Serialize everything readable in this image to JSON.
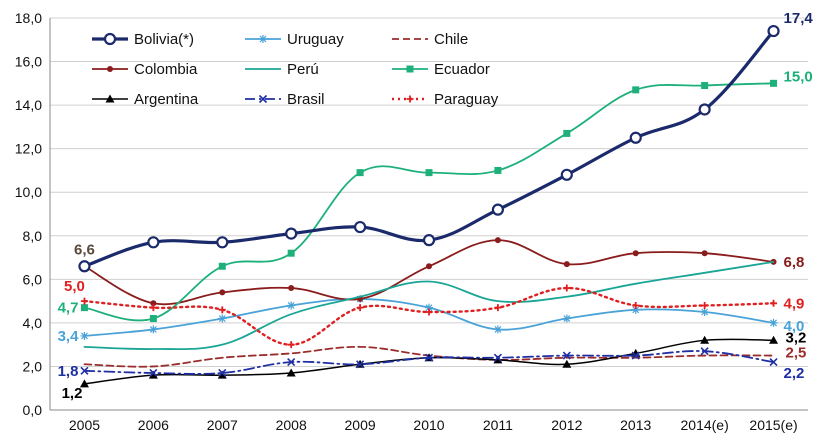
{
  "chart_data": {
    "type": "line",
    "categories": [
      "2005",
      "2006",
      "2007",
      "2008",
      "2009",
      "2010",
      "2011",
      "2012",
      "2013",
      "2014(e)",
      "2015(e)"
    ],
    "ylim": [
      0,
      18
    ],
    "yticks": [
      "0,0",
      "2,0",
      "4,0",
      "6,0",
      "8,0",
      "10,0",
      "12,0",
      "14,0",
      "16,0",
      "18,0"
    ],
    "grid": true,
    "legend_position": "top-left",
    "series": [
      {
        "name": "Bolivia(*)",
        "color": "#1b2a6b",
        "dash": "solid",
        "marker": "circle",
        "width": 3.2,
        "values": [
          6.6,
          7.7,
          7.7,
          8.1,
          8.4,
          7.8,
          9.2,
          10.8,
          12.5,
          13.8,
          17.4
        ]
      },
      {
        "name": "Uruguay",
        "color": "#4aa3d8",
        "dash": "solid",
        "marker": "star",
        "width": 1.8,
        "values": [
          3.4,
          3.7,
          4.2,
          4.8,
          5.1,
          4.7,
          3.7,
          4.2,
          4.6,
          4.5,
          4.0
        ]
      },
      {
        "name": "Chile",
        "color": "#9b2c2c",
        "dash": "dash",
        "marker": "none",
        "width": 1.8,
        "values": [
          2.1,
          2.0,
          2.4,
          2.6,
          2.9,
          2.5,
          2.3,
          2.4,
          2.4,
          2.5,
          2.5
        ]
      },
      {
        "name": "Colombia",
        "color": "#8a1c1c",
        "dash": "solid",
        "marker": "dot",
        "width": 1.8,
        "values": [
          6.6,
          4.9,
          5.4,
          5.6,
          5.1,
          6.6,
          7.8,
          6.7,
          7.2,
          7.2,
          6.8
        ]
      },
      {
        "name": "Perú",
        "color": "#1aa596",
        "dash": "solid",
        "marker": "none",
        "width": 1.8,
        "values": [
          2.9,
          2.8,
          3.0,
          4.4,
          5.2,
          5.9,
          5.0,
          5.2,
          5.8,
          6.3,
          6.8
        ]
      },
      {
        "name": "Ecuador",
        "color": "#1db07a",
        "dash": "solid",
        "marker": "square",
        "width": 1.8,
        "values": [
          4.7,
          4.2,
          6.6,
          7.2,
          10.9,
          10.9,
          11.0,
          12.7,
          14.7,
          14.9,
          15.0
        ]
      },
      {
        "name": "Argentina",
        "color": "#000000",
        "dash": "solid",
        "marker": "triangle",
        "width": 1.5,
        "values": [
          1.2,
          1.6,
          1.6,
          1.7,
          2.1,
          2.4,
          2.3,
          2.1,
          2.6,
          3.2,
          3.2
        ]
      },
      {
        "name": "Brasil",
        "color": "#1f2fa3",
        "dash": "dashdot",
        "marker": "x",
        "width": 1.8,
        "values": [
          1.8,
          1.7,
          1.7,
          2.2,
          2.1,
          2.4,
          2.4,
          2.5,
          2.5,
          2.7,
          2.2
        ]
      },
      {
        "name": "Paraguay",
        "color": "#e02020",
        "dash": "dot",
        "marker": "plus",
        "width": 2.4,
        "values": [
          5.0,
          4.7,
          4.6,
          3.0,
          4.7,
          4.5,
          4.7,
          5.6,
          4.8,
          4.8,
          4.9
        ]
      }
    ],
    "annotations": [
      {
        "text": "6,6",
        "color": "#5a4a3a",
        "series": "Bolivia(*)",
        "index": 0
      },
      {
        "text": "5,0",
        "color": "#e02020",
        "series": "Paraguay",
        "index": 0
      },
      {
        "text": "4,7",
        "color": "#1db07a",
        "series": "Ecuador",
        "index": 0
      },
      {
        "text": "3,4",
        "color": "#4aa3d8",
        "series": "Uruguay",
        "index": 0
      },
      {
        "text": "1,8",
        "color": "#1f2fa3",
        "series": "Brasil",
        "index": 0
      },
      {
        "text": "1,2",
        "color": "#000000",
        "series": "Argentina",
        "index": 0
      },
      {
        "text": "17,4",
        "color": "#1b2a6b",
        "series": "Bolivia(*)",
        "index": 10
      },
      {
        "text": "15,0",
        "color": "#1db07a",
        "series": "Ecuador",
        "index": 10
      },
      {
        "text": "6,8",
        "color": "#8a1c1c",
        "series": "Colombia",
        "index": 10
      },
      {
        "text": "4,9",
        "color": "#e02020",
        "series": "Paraguay",
        "index": 10
      },
      {
        "text": "4,0",
        "color": "#4aa3d8",
        "series": "Uruguay",
        "index": 10
      },
      {
        "text": "3,2",
        "color": "#000000",
        "series": "Argentina",
        "index": 10
      },
      {
        "text": "2,5",
        "color": "#9b2c2c",
        "series": "Chile",
        "index": 10
      },
      {
        "text": "2,2",
        "color": "#1f2fa3",
        "series": "Brasil",
        "index": 10
      }
    ]
  }
}
